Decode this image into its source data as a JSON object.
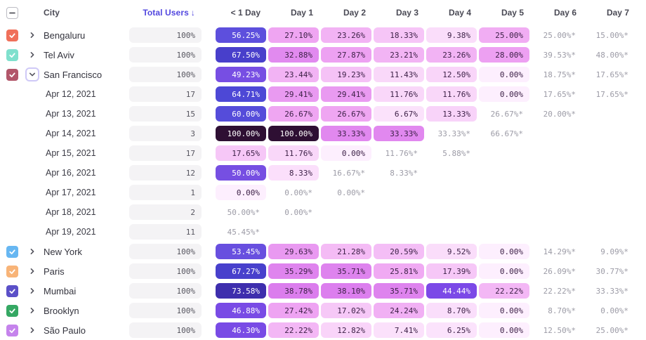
{
  "table": {
    "header": {
      "select_all_state": "indeterminate",
      "city_label": "City",
      "total_users_label": "Total Users",
      "sort_arrow": "↓",
      "day_columns": [
        "< 1 Day",
        "Day 1",
        "Day 2",
        "Day 3",
        "Day 4",
        "Day 5",
        "Day 6",
        "Day 7"
      ]
    },
    "colors": {
      "sorted_header_text": "#5247df",
      "dark_cell_text": "#3d2147",
      "white_cell_text": "#ffffff",
      "partial_text": "#9c9ba6",
      "total_pill_bg": "#f4f3f5",
      "white_text_threshold": 43,
      "scale_anchors": [
        [
          0,
          "#fdeffe"
        ],
        [
          10,
          "#fadcfa"
        ],
        [
          20,
          "#f5c0f6"
        ],
        [
          27,
          "#efa5f2"
        ],
        [
          33,
          "#e189ef"
        ],
        [
          40,
          "#da7aed"
        ],
        [
          44,
          "#7b48e7"
        ],
        [
          50,
          "#764fe2"
        ],
        [
          57,
          "#5a4fdc"
        ],
        [
          65,
          "#4c48d6"
        ],
        [
          70,
          "#4436c0"
        ],
        [
          76,
          "#3a28a0"
        ],
        [
          100,
          "#2e0f33"
        ]
      ]
    },
    "rows": [
      {
        "type": "city",
        "label": "Bengaluru",
        "checkbox_color": "#f0705a",
        "checked": true,
        "expanded": false,
        "total": "100%",
        "cells": [
          {
            "v": 56.25
          },
          {
            "v": 27.1
          },
          {
            "v": 23.26
          },
          {
            "v": 18.33
          },
          {
            "v": 9.38
          },
          {
            "v": 25.0
          },
          {
            "v": 25.0,
            "partial": true
          },
          {
            "v": 15.0,
            "partial": true
          }
        ]
      },
      {
        "type": "city",
        "label": "Tel Aviv",
        "checkbox_color": "#7fe0cd",
        "checked": true,
        "expanded": false,
        "total": "100%",
        "cells": [
          {
            "v": 67.5
          },
          {
            "v": 32.88
          },
          {
            "v": 27.87
          },
          {
            "v": 23.21
          },
          {
            "v": 23.26
          },
          {
            "v": 28.0
          },
          {
            "v": 39.53,
            "partial": true
          },
          {
            "v": 48.0,
            "partial": true
          }
        ]
      },
      {
        "type": "city",
        "label": "San Francisco",
        "checkbox_color": "#b2566a",
        "checked": true,
        "expanded": true,
        "total": "100%",
        "cells": [
          {
            "v": 49.23
          },
          {
            "v": 23.44
          },
          {
            "v": 19.23
          },
          {
            "v": 11.43
          },
          {
            "v": 12.5
          },
          {
            "v": 0.0
          },
          {
            "v": 18.75,
            "partial": true
          },
          {
            "v": 17.65,
            "partial": true
          }
        ]
      },
      {
        "type": "date",
        "label": "Apr 12, 2021",
        "total": "17",
        "cells": [
          {
            "v": 64.71
          },
          {
            "v": 29.41
          },
          {
            "v": 29.41
          },
          {
            "v": 11.76
          },
          {
            "v": 11.76
          },
          {
            "v": 0.0
          },
          {
            "v": 17.65,
            "partial": true
          },
          {
            "v": 17.65,
            "partial": true
          }
        ]
      },
      {
        "type": "date",
        "label": "Apr 13, 2021",
        "total": "15",
        "cells": [
          {
            "v": 60.0
          },
          {
            "v": 26.67
          },
          {
            "v": 26.67
          },
          {
            "v": 6.67
          },
          {
            "v": 13.33
          },
          {
            "v": 26.67,
            "partial": true
          },
          {
            "v": 20.0,
            "partial": true
          },
          null
        ]
      },
      {
        "type": "date",
        "label": "Apr 14, 2021",
        "total": "3",
        "cells": [
          {
            "v": 100.0
          },
          {
            "v": 100.0
          },
          {
            "v": 33.33
          },
          {
            "v": 33.33
          },
          {
            "v": 33.33,
            "partial": true
          },
          {
            "v": 66.67,
            "partial": true
          },
          null,
          null
        ]
      },
      {
        "type": "date",
        "label": "Apr 15, 2021",
        "total": "17",
        "cells": [
          {
            "v": 17.65
          },
          {
            "v": 11.76
          },
          {
            "v": 0.0
          },
          {
            "v": 11.76,
            "partial": true
          },
          {
            "v": 5.88,
            "partial": true
          },
          null,
          null,
          null
        ]
      },
      {
        "type": "date",
        "label": "Apr 16, 2021",
        "total": "12",
        "cells": [
          {
            "v": 50.0
          },
          {
            "v": 8.33
          },
          {
            "v": 16.67,
            "partial": true
          },
          {
            "v": 8.33,
            "partial": true
          },
          null,
          null,
          null,
          null
        ]
      },
      {
        "type": "date",
        "label": "Apr 17, 2021",
        "total": "1",
        "cells": [
          {
            "v": 0.0
          },
          {
            "v": 0.0,
            "partial": true
          },
          {
            "v": 0.0,
            "partial": true
          },
          null,
          null,
          null,
          null,
          null
        ]
      },
      {
        "type": "date",
        "label": "Apr 18, 2021",
        "total": "2",
        "cells": [
          {
            "v": 50.0,
            "partial": true
          },
          {
            "v": 0.0,
            "partial": true
          },
          null,
          null,
          null,
          null,
          null,
          null
        ]
      },
      {
        "type": "date",
        "label": "Apr 19, 2021",
        "total": "11",
        "cells": [
          {
            "v": 45.45,
            "partial": true
          },
          null,
          null,
          null,
          null,
          null,
          null,
          null
        ]
      },
      {
        "type": "city",
        "label": "New York",
        "checkbox_color": "#67b7f2",
        "checked": true,
        "expanded": false,
        "total": "100%",
        "cells": [
          {
            "v": 53.45
          },
          {
            "v": 29.63
          },
          {
            "v": 21.28
          },
          {
            "v": 20.59
          },
          {
            "v": 9.52
          },
          {
            "v": 0.0
          },
          {
            "v": 14.29,
            "partial": true
          },
          {
            "v": 9.09,
            "partial": true
          }
        ]
      },
      {
        "type": "city",
        "label": "Paris",
        "checkbox_color": "#f8b478",
        "checked": true,
        "expanded": false,
        "total": "100%",
        "cells": [
          {
            "v": 67.27
          },
          {
            "v": 35.29
          },
          {
            "v": 35.71
          },
          {
            "v": 25.81
          },
          {
            "v": 17.39
          },
          {
            "v": 0.0
          },
          {
            "v": 26.09,
            "partial": true
          },
          {
            "v": 30.77,
            "partial": true
          }
        ]
      },
      {
        "type": "city",
        "label": "Mumbai",
        "checkbox_color": "#5b50c8",
        "checked": true,
        "expanded": false,
        "total": "100%",
        "cells": [
          {
            "v": 73.58
          },
          {
            "v": 38.78
          },
          {
            "v": 38.1
          },
          {
            "v": 35.71
          },
          {
            "v": 44.44
          },
          {
            "v": 22.22
          },
          {
            "v": 22.22,
            "partial": true
          },
          {
            "v": 33.33,
            "partial": true
          }
        ]
      },
      {
        "type": "city",
        "label": "Brooklyn",
        "checkbox_color": "#35a863",
        "checked": true,
        "expanded": false,
        "total": "100%",
        "cells": [
          {
            "v": 46.88
          },
          {
            "v": 27.42
          },
          {
            "v": 17.02
          },
          {
            "v": 24.24
          },
          {
            "v": 8.7
          },
          {
            "v": 0.0
          },
          {
            "v": 8.7,
            "partial": true
          },
          {
            "v": 0.0,
            "partial": true
          }
        ]
      },
      {
        "type": "city",
        "label": "São Paulo",
        "checkbox_color": "#c583ec",
        "checked": true,
        "expanded": false,
        "total": "100%",
        "cells": [
          {
            "v": 46.3
          },
          {
            "v": 22.22
          },
          {
            "v": 12.82
          },
          {
            "v": 7.41
          },
          {
            "v": 6.25
          },
          {
            "v": 0.0
          },
          {
            "v": 12.5,
            "partial": true
          },
          {
            "v": 25.0,
            "partial": true
          }
        ]
      }
    ]
  }
}
